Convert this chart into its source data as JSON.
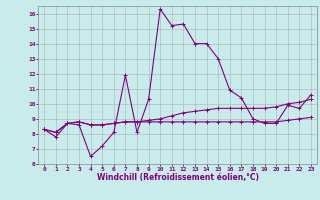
{
  "xlabel": "Windchill (Refroidissement éolien,°C)",
  "background_color": "#c8ecec",
  "line_color": "#800080",
  "grid_color": "#b0b0b0",
  "ylim": [
    6,
    16.5
  ],
  "xlim": [
    -0.5,
    23.5
  ],
  "yticks": [
    6,
    7,
    8,
    9,
    10,
    11,
    12,
    13,
    14,
    15,
    16
  ],
  "xticks": [
    0,
    1,
    2,
    3,
    4,
    5,
    6,
    7,
    8,
    9,
    10,
    11,
    12,
    13,
    14,
    15,
    16,
    17,
    18,
    19,
    20,
    21,
    22,
    23
  ],
  "line1_x": [
    0,
    1,
    2,
    3,
    4,
    5,
    6,
    7,
    8,
    9,
    10,
    11,
    12,
    13,
    14,
    15,
    16,
    17,
    18,
    19,
    20,
    21,
    22,
    23
  ],
  "line1_y": [
    8.3,
    7.8,
    8.7,
    8.6,
    6.5,
    7.2,
    8.1,
    11.9,
    8.1,
    10.3,
    16.3,
    15.2,
    15.3,
    14.0,
    14.0,
    13.0,
    10.9,
    10.4,
    9.0,
    8.7,
    8.7,
    9.9,
    9.7,
    10.6
  ],
  "line2_x": [
    0,
    1,
    2,
    3,
    4,
    5,
    6,
    7,
    8,
    9,
    10,
    11,
    12,
    13,
    14,
    15,
    16,
    17,
    18,
    19,
    20,
    21,
    22,
    23
  ],
  "line2_y": [
    8.3,
    8.1,
    8.7,
    8.8,
    8.6,
    8.6,
    8.7,
    8.8,
    8.8,
    8.8,
    8.8,
    8.8,
    8.8,
    8.8,
    8.8,
    8.8,
    8.8,
    8.8,
    8.8,
    8.8,
    8.8,
    8.9,
    9.0,
    9.1
  ],
  "line3_x": [
    0,
    1,
    2,
    3,
    4,
    5,
    6,
    7,
    8,
    9,
    10,
    11,
    12,
    13,
    14,
    15,
    16,
    17,
    18,
    19,
    20,
    21,
    22,
    23
  ],
  "line3_y": [
    8.3,
    8.1,
    8.7,
    8.8,
    8.6,
    8.6,
    8.7,
    8.8,
    8.8,
    8.9,
    9.0,
    9.2,
    9.4,
    9.5,
    9.6,
    9.7,
    9.7,
    9.7,
    9.7,
    9.7,
    9.8,
    10.0,
    10.1,
    10.3
  ],
  "marker": "+",
  "markersize": 3,
  "linewidth": 0.8,
  "tick_fontsize": 4.5,
  "label_fontsize": 5.5
}
